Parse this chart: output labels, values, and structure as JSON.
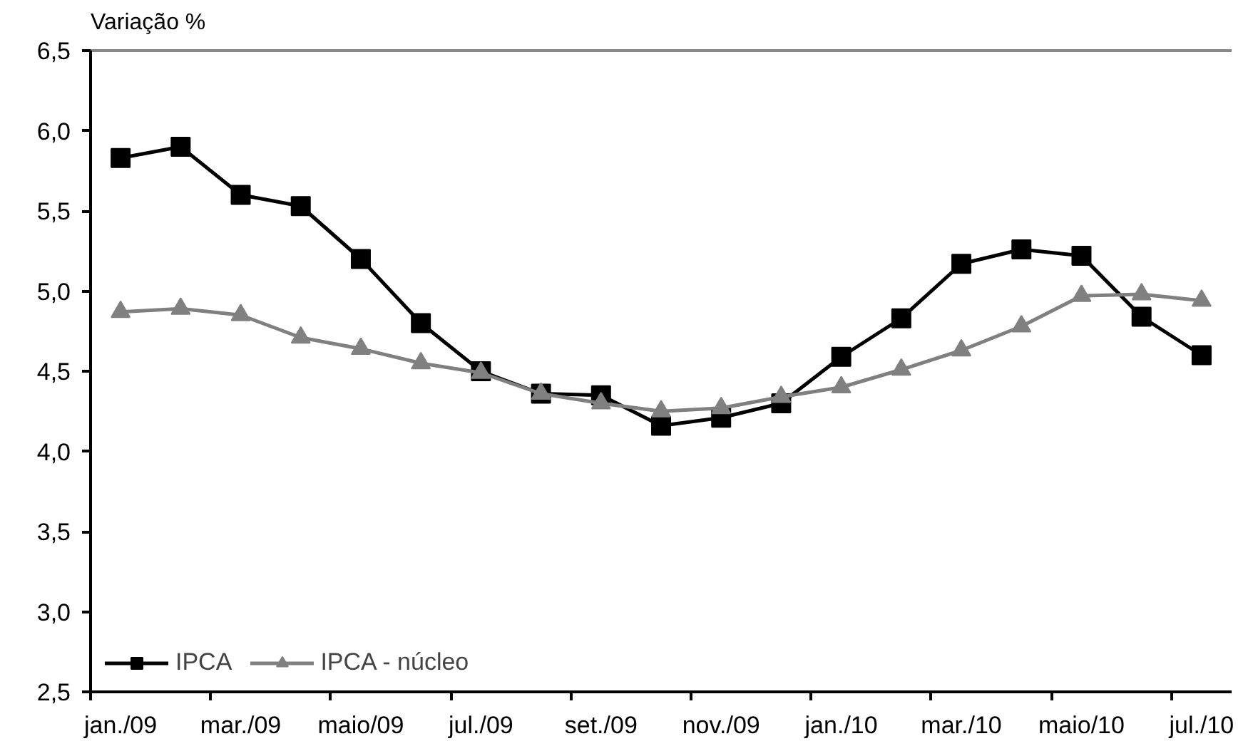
{
  "chart_data": {
    "type": "line",
    "ylabel": "Variação %",
    "categories": [
      "jan./09",
      null,
      "mar./09",
      null,
      "maio/09",
      null,
      "jul./09",
      null,
      "set./09",
      null,
      "nov./09",
      null,
      "jan./10",
      null,
      "mar./10",
      null,
      "maio/10",
      null,
      "jul./10"
    ],
    "series": [
      {
        "name": "IPCA",
        "color": "#000000",
        "marker": "square",
        "values": [
          5.83,
          5.9,
          5.6,
          5.53,
          5.2,
          4.8,
          4.5,
          4.36,
          4.35,
          4.16,
          4.21,
          4.3,
          4.59,
          4.83,
          5.17,
          5.26,
          5.22,
          4.84,
          4.6
        ]
      },
      {
        "name": "IPCA - núcleo",
        "color": "#808080",
        "marker": "triangle",
        "values": [
          4.87,
          4.89,
          4.85,
          4.71,
          4.64,
          4.55,
          4.49,
          4.36,
          4.3,
          4.25,
          4.27,
          4.34,
          4.4,
          4.51,
          4.63,
          4.78,
          4.97,
          4.98,
          4.94
        ]
      }
    ],
    "ylim": [
      2.5,
      6.5
    ],
    "yticks": [
      {
        "value": 2.5,
        "label": "2,5"
      },
      {
        "value": 3,
        "label": "3,0"
      },
      {
        "value": 3.5,
        "label": "3,5"
      },
      {
        "value": 4,
        "label": "4,0"
      },
      {
        "value": 4.5,
        "label": "4,5"
      },
      {
        "value": 5,
        "label": "5,0"
      },
      {
        "value": 5.5,
        "label": "5,5"
      },
      {
        "value": 6,
        "label": "6,0"
      },
      {
        "value": 6.5,
        "label": "6,5"
      }
    ],
    "grid": false,
    "legend": "bottom left",
    "line_style": "solid"
  }
}
